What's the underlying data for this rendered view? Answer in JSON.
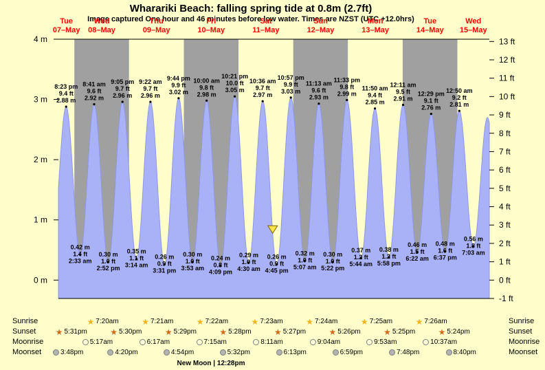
{
  "colors": {
    "background": "#ffffcc",
    "band_gray": "#a0a0a0",
    "tide_fill": "#aab2f7",
    "tide_edge": "#8e97e8",
    "day_label_red": "#ff0000",
    "marker_yellow": "#ffe34d",
    "sunrise_star": "#edb41d",
    "sunset_star": "#cf6a1c",
    "moonrise_fill": "#ffffd8",
    "moonset_fill": "#b3b3b3"
  },
  "chart_data": {
    "type": "area",
    "title": "Wharariki Beach: falling  spring tide at 0.8m (2.7ft)",
    "subtitle": "Image captured One hour and 46 minutes before low water. Times are NZST (UTC +12.0hrs)",
    "ylim_m": [
      -0.3048,
      4
    ],
    "x_range_hours": [
      17,
      206
    ],
    "grid": false,
    "days": [
      {
        "weekday": "Tue",
        "date": "07–May",
        "shaded": false
      },
      {
        "weekday": "Wed",
        "date": "08–May",
        "shaded": true
      },
      {
        "weekday": "Thu",
        "date": "09–May",
        "shaded": false
      },
      {
        "weekday": "Fri",
        "date": "10–May",
        "shaded": true
      },
      {
        "weekday": "Sat",
        "date": "11–May",
        "shaded": false
      },
      {
        "weekday": "Sun",
        "date": "12–May",
        "shaded": true
      },
      {
        "weekday": "Mon",
        "date": "13–May",
        "shaded": false
      },
      {
        "weekday": "Tue",
        "date": "14–May",
        "shaded": true
      },
      {
        "weekday": "Wed",
        "date": "15–May",
        "shaded": false
      }
    ],
    "y_axis_left": [
      {
        "label": "4 m",
        "m": 4
      },
      {
        "label": "3 m",
        "m": 3
      },
      {
        "label": "2 m",
        "m": 2
      },
      {
        "label": "1 m",
        "m": 1
      },
      {
        "label": "0 m",
        "m": 0
      }
    ],
    "y_axis_right": [
      {
        "label": "13 ft",
        "ft": 13
      },
      {
        "label": "12 ft",
        "ft": 12
      },
      {
        "label": "11 ft",
        "ft": 11
      },
      {
        "label": "10 ft",
        "ft": 10
      },
      {
        "label": "9 ft",
        "ft": 9
      },
      {
        "label": "8 ft",
        "ft": 8
      },
      {
        "label": "7 ft",
        "ft": 7
      },
      {
        "label": "6 ft",
        "ft": 6
      },
      {
        "label": "5 ft",
        "ft": 5
      },
      {
        "label": "4 ft",
        "ft": 4
      },
      {
        "label": "3 ft",
        "ft": 3
      },
      {
        "label": "2 ft",
        "ft": 2
      },
      {
        "label": "1 ft",
        "ft": 1
      },
      {
        "label": "0 ft",
        "ft": 0
      },
      {
        "label": "-1 ft",
        "ft": -1
      }
    ],
    "extremes": [
      {
        "type": "low",
        "t": 14.1,
        "m": 0.45,
        "labeled": false
      },
      {
        "type": "high",
        "t": 20.38,
        "m": 2.88,
        "time": "8:23 pm",
        "ft_label": "9.4 ft",
        "m_label": "2.88 m"
      },
      {
        "type": "low",
        "t": 26.55,
        "m": 0.42,
        "time": "2:33 am",
        "ft_label": "1.4 ft",
        "m_label": "0.42 m"
      },
      {
        "type": "high",
        "t": 32.68,
        "m": 2.92,
        "time": "8:41 am",
        "ft_label": "9.6 ft",
        "m_label": "2.92 m"
      },
      {
        "type": "low",
        "t": 38.87,
        "m": 0.3,
        "time": "2:52 pm",
        "ft_label": "1.0 ft",
        "m_label": "0.30 m"
      },
      {
        "type": "high",
        "t": 45.08,
        "m": 2.96,
        "time": "9:05 pm",
        "ft_label": "9.7 ft",
        "m_label": "2.96 m"
      },
      {
        "type": "low",
        "t": 51.23,
        "m": 0.35,
        "time": "3:14 am",
        "ft_label": "1.1 ft",
        "m_label": "0.35 m"
      },
      {
        "type": "high",
        "t": 57.37,
        "m": 2.96,
        "time": "9:22 am",
        "ft_label": "9.7 ft",
        "m_label": "2.96 m"
      },
      {
        "type": "low",
        "t": 63.52,
        "m": 0.26,
        "time": "3:31 pm",
        "ft_label": "0.9 ft",
        "m_label": "0.26 m"
      },
      {
        "type": "high",
        "t": 69.73,
        "m": 3.02,
        "time": "9:44 pm",
        "ft_label": "9.9 ft",
        "m_label": "3.02 m"
      },
      {
        "type": "low",
        "t": 75.88,
        "m": 0.3,
        "time": "3:53 am",
        "ft_label": "1.0 ft",
        "m_label": "0.30 m"
      },
      {
        "type": "high",
        "t": 82.0,
        "m": 2.98,
        "time": "10:00 am",
        "ft_label": "9.8 ft",
        "m_label": "2.98 m"
      },
      {
        "type": "low",
        "t": 88.15,
        "m": 0.24,
        "time": "4:09 pm",
        "ft_label": "0.8 ft",
        "m_label": "0.24 m"
      },
      {
        "type": "high",
        "t": 94.35,
        "m": 3.05,
        "time": "10:21 pm",
        "ft_label": "10.0 ft",
        "m_label": "3.05 m"
      },
      {
        "type": "low",
        "t": 100.5,
        "m": 0.29,
        "time": "4:30 am",
        "ft_label": "1.0 ft",
        "m_label": "0.29 m"
      },
      {
        "type": "high",
        "t": 106.6,
        "m": 2.97,
        "time": "10:36 am",
        "ft_label": "9.7 ft",
        "m_label": "2.97 m"
      },
      {
        "type": "low",
        "t": 112.75,
        "m": 0.26,
        "time": "4:45 pm",
        "ft_label": "0.9 ft",
        "m_label": "0.26 m"
      },
      {
        "type": "high",
        "t": 118.95,
        "m": 3.03,
        "time": "10:57 pm",
        "ft_label": "9.9 ft",
        "m_label": "3.03 m"
      },
      {
        "type": "low",
        "t": 125.12,
        "m": 0.32,
        "time": "5:07 am",
        "ft_label": "1.0 ft",
        "m_label": "0.32 m"
      },
      {
        "type": "high",
        "t": 131.22,
        "m": 2.93,
        "time": "11:13 am",
        "ft_label": "9.6 ft",
        "m_label": "2.93 m"
      },
      {
        "type": "low",
        "t": 137.37,
        "m": 0.3,
        "time": "5:22 pm",
        "ft_label": "1.0 ft",
        "m_label": "0.30 m"
      },
      {
        "type": "high",
        "t": 143.55,
        "m": 2.99,
        "time": "11:33 pm",
        "ft_label": "9.8 ft",
        "m_label": "2.99 m"
      },
      {
        "type": "low",
        "t": 149.73,
        "m": 0.37,
        "time": "5:44 am",
        "ft_label": "1.2 ft",
        "m_label": "0.37 m"
      },
      {
        "type": "high",
        "t": 155.83,
        "m": 2.85,
        "time": "11:50 am",
        "ft_label": "9.4 ft",
        "m_label": "2.85 m"
      },
      {
        "type": "low",
        "t": 161.97,
        "m": 0.38,
        "time": "5:58 pm",
        "ft_label": "1.2 ft",
        "m_label": "0.38 m"
      },
      {
        "type": "high",
        "t": 168.18,
        "m": 2.91,
        "time": "12:11 am",
        "ft_label": "9.5 ft",
        "m_label": "2.91 m"
      },
      {
        "type": "low",
        "t": 174.37,
        "m": 0.46,
        "time": "6:22 am",
        "ft_label": "1.5 ft",
        "m_label": "0.46 m"
      },
      {
        "type": "high",
        "t": 180.48,
        "m": 2.76,
        "time": "12:29 pm",
        "ft_label": "9.1 ft",
        "m_label": "2.76 m"
      },
      {
        "type": "low",
        "t": 186.62,
        "m": 0.48,
        "time": "6:37 pm",
        "ft_label": "1.6 ft",
        "m_label": "0.48 m"
      },
      {
        "type": "high",
        "t": 192.83,
        "m": 2.81,
        "time": "12:50 am",
        "ft_label": "9.2 ft",
        "m_label": "2.81 m"
      },
      {
        "type": "low",
        "t": 199.05,
        "m": 0.56,
        "time": "7:03 am",
        "ft_label": "1.8 ft",
        "m_label": "0.56 m"
      },
      {
        "type": "high",
        "t": 205.17,
        "m": 2.7,
        "labeled": false
      }
    ],
    "marker": {
      "shape": "triangle-down",
      "t": 110.98,
      "level_m": 0.8
    }
  },
  "astro": {
    "rows": [
      {
        "key": "sunrise",
        "label": "Sunrise",
        "icon": "sunrise-star-icon",
        "entries": [
          {
            "time": "7:20am",
            "t": 31.33
          },
          {
            "time": "7:21am",
            "t": 55.35
          },
          {
            "time": "7:22am",
            "t": 79.37
          },
          {
            "time": "7:23am",
            "t": 103.38
          },
          {
            "time": "7:24am",
            "t": 127.4
          },
          {
            "time": "7:25am",
            "t": 151.42
          },
          {
            "time": "7:26am",
            "t": 175.43
          }
        ]
      },
      {
        "key": "sunset",
        "label": "Sunset",
        "icon": "sunset-star-icon",
        "entries": [
          {
            "time": "5:31pm",
            "t": 17.52
          },
          {
            "time": "5:30pm",
            "t": 41.5
          },
          {
            "time": "5:29pm",
            "t": 65.48
          },
          {
            "time": "5:28pm",
            "t": 89.47
          },
          {
            "time": "5:27pm",
            "t": 113.45
          },
          {
            "time": "5:26pm",
            "t": 137.43
          },
          {
            "time": "5:25pm",
            "t": 161.42
          },
          {
            "time": "5:24pm",
            "t": 185.4
          }
        ]
      },
      {
        "key": "moonrise",
        "label": "Moonrise",
        "icon": "moonrise-icon",
        "entries": [
          {
            "time": "5:17am",
            "t": 29.28
          },
          {
            "time": "6:17am",
            "t": 54.28
          },
          {
            "time": "7:15am",
            "t": 79.25
          },
          {
            "time": "8:11am",
            "t": 104.18
          },
          {
            "time": "9:04am",
            "t": 129.07
          },
          {
            "time": "9:53am",
            "t": 153.88
          },
          {
            "time": "10:37am",
            "t": 178.62
          }
        ]
      },
      {
        "key": "moonset",
        "label": "Moonset",
        "icon": "moonset-icon",
        "entries": [
          {
            "time": "3:48pm",
            "t": 15.8
          },
          {
            "time": "4:20pm",
            "t": 40.33
          },
          {
            "time": "4:54pm",
            "t": 64.9
          },
          {
            "time": "5:32pm",
            "t": 89.53
          },
          {
            "time": "6:13pm",
            "t": 114.22
          },
          {
            "time": "6:59pm",
            "t": 138.98
          },
          {
            "time": "7:48pm",
            "t": 163.8
          },
          {
            "time": "8:40pm",
            "t": 188.67
          }
        ]
      }
    ],
    "phase_note": "New Moon | 12:28pm"
  }
}
